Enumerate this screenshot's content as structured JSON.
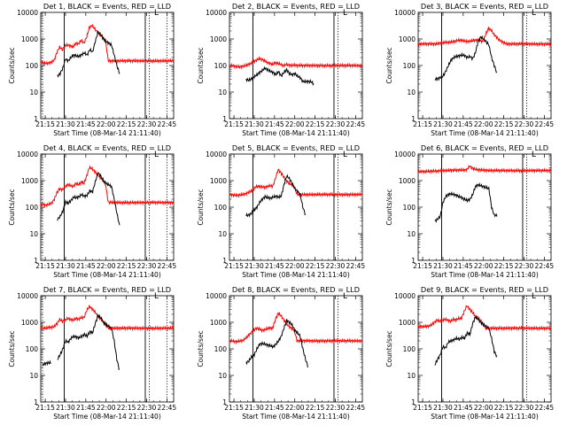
{
  "figure": {
    "x_ticks": [
      "21:15",
      "21:30",
      "21:45",
      "22:00",
      "22:15",
      "22:30",
      "22:45"
    ],
    "y_ticks": [
      "1",
      "10",
      "100",
      "1000",
      "10000"
    ],
    "ylabel": "Counts/sec",
    "xlabel": "Start Time (08-Mar-14 21:11:40)",
    "legend_mark": "L"
  },
  "chart_data": [
    {
      "type": "line",
      "title": "Det 1, BLACK = Events, RED = LLD",
      "xlim": [
        "21:11:40",
        "22:50"
      ],
      "ylim": [
        1,
        10000
      ],
      "yscale": "log",
      "x_start": "21:11:40",
      "sample_minutes": 2,
      "vlines_solid": [
        "21:29",
        "22:29"
      ],
      "vlines_dotted": [
        "21:13",
        "21:29",
        "22:32",
        "22:45"
      ],
      "series": [
        {
          "color": "#ff0000",
          "start": "21:11:40",
          "values": [
            140,
            125,
            120,
            125,
            135,
            160,
            320,
            500,
            400,
            550,
            600,
            550,
            500,
            700,
            650,
            900,
            700,
            1200,
            2800,
            3200,
            2400,
            1800,
            1400,
            1200,
            800,
            150,
            150,
            150,
            150,
            150,
            150,
            150,
            150,
            150,
            150,
            150,
            150,
            150,
            150,
            150,
            150,
            150,
            150,
            150,
            150,
            150,
            150,
            150,
            150,
            150
          ]
        },
        {
          "color": "#000000",
          "start": "21:24",
          "values": [
            40,
            50,
            80,
            180,
            150,
            200,
            250,
            230,
            220,
            260,
            300,
            250,
            400,
            320,
            800,
            1800,
            1500,
            1000,
            800,
            700,
            600,
            250,
            100,
            50
          ]
        }
      ]
    },
    {
      "type": "line",
      "title": "Det 2, BLACK = Events, RED = LLD",
      "xlim": [
        "21:11:40",
        "22:50"
      ],
      "ylim": [
        1,
        10000
      ],
      "yscale": "log",
      "x_start": "21:11:40",
      "sample_minutes": 2,
      "vlines_solid": [
        "21:29",
        "22:29"
      ],
      "vlines_dotted": [
        "21:29",
        "22:32"
      ],
      "series": [
        {
          "color": "#ff0000",
          "start": "21:11:40",
          "values": [
            100,
            100,
            95,
            90,
            90,
            95,
            100,
            110,
            120,
            140,
            160,
            180,
            170,
            150,
            130,
            120,
            110,
            130,
            120,
            110,
            100,
            110,
            105,
            100,
            105,
            100,
            100,
            100,
            100,
            100,
            100,
            100,
            100,
            100,
            100,
            100,
            100,
            100,
            100,
            100,
            100,
            100,
            100,
            100,
            100,
            100,
            100,
            100,
            100,
            100
          ]
        },
        {
          "color": "#000000",
          "start": "21:24",
          "values": [
            30,
            28,
            32,
            38,
            45,
            55,
            65,
            80,
            70,
            60,
            55,
            45,
            60,
            40,
            55,
            70,
            50,
            45,
            50,
            40,
            35,
            25,
            25,
            25,
            25,
            20
          ]
        }
      ]
    },
    {
      "type": "line",
      "title": "Det 3, BLACK = Events, RED = LLD",
      "xlim": [
        "21:11:40",
        "22:50"
      ],
      "ylim": [
        1,
        10000
      ],
      "yscale": "log",
      "x_start": "21:11:40",
      "sample_minutes": 2,
      "vlines_solid": [
        "21:29",
        "22:29"
      ],
      "vlines_dotted": [
        "21:29",
        "22:32"
      ],
      "series": [
        {
          "color": "#ff0000",
          "start": "21:11:40",
          "values": [
            650,
            650,
            650,
            650,
            650,
            650,
            650,
            650,
            700,
            700,
            750,
            750,
            760,
            800,
            850,
            900,
            900,
            850,
            800,
            820,
            850,
            900,
            900,
            850,
            800,
            1500,
            2500,
            2200,
            1500,
            1200,
            900,
            800,
            700,
            650,
            650,
            650,
            650,
            650,
            650,
            650,
            650,
            650,
            650,
            650,
            650,
            650,
            650,
            650,
            650,
            650
          ]
        },
        {
          "color": "#000000",
          "start": "21:24",
          "values": [
            30,
            32,
            35,
            40,
            60,
            100,
            160,
            200,
            220,
            230,
            250,
            240,
            200,
            220,
            180,
            300,
            800,
            1200,
            1000,
            800,
            600,
            200,
            100,
            50
          ]
        }
      ]
    },
    {
      "type": "line",
      "title": "Det 4, BLACK = Events, RED = LLD",
      "xlim": [
        "21:11:40",
        "22:50"
      ],
      "ylim": [
        1,
        10000
      ],
      "yscale": "log",
      "x_start": "21:11:40",
      "sample_minutes": 2,
      "vlines_solid": [
        "21:29",
        "22:29"
      ],
      "vlines_dotted": [
        "21:13",
        "21:29",
        "22:32",
        "22:45"
      ],
      "series": [
        {
          "color": "#ff0000",
          "start": "21:11:40",
          "values": [
            130,
            125,
            120,
            130,
            140,
            200,
            350,
            500,
            450,
            600,
            700,
            650,
            600,
            800,
            700,
            900,
            800,
            1500,
            3200,
            2800,
            2200,
            1700,
            1300,
            1100,
            700,
            150,
            150,
            150,
            150,
            150,
            150,
            150,
            150,
            150,
            150,
            150,
            150,
            150,
            150,
            150,
            150,
            150,
            150,
            150,
            150,
            150,
            150,
            150,
            150,
            150
          ]
        },
        {
          "color": "#000000",
          "start": "21:24",
          "values": [
            35,
            45,
            70,
            160,
            140,
            180,
            240,
            230,
            250,
            300,
            260,
            280,
            420,
            380,
            900,
            2000,
            1500,
            1000,
            800,
            700,
            600,
            200,
            60,
            20
          ]
        }
      ]
    },
    {
      "type": "line",
      "title": "Det 5, BLACK = Events, RED = LLD",
      "xlim": [
        "21:11:40",
        "22:50"
      ],
      "ylim": [
        1,
        10000
      ],
      "yscale": "log",
      "x_start": "21:11:40",
      "sample_minutes": 2,
      "vlines_solid": [
        "21:29",
        "22:29"
      ],
      "vlines_dotted": [
        "21:29",
        "22:32"
      ],
      "series": [
        {
          "color": "#ff0000",
          "start": "21:11:40",
          "values": [
            300,
            290,
            280,
            280,
            290,
            300,
            320,
            360,
            400,
            500,
            600,
            620,
            580,
            560,
            600,
            650,
            600,
            1200,
            2600,
            2000,
            1400,
            1000,
            800,
            700,
            600,
            300,
            300,
            300,
            300,
            300,
            300,
            300,
            300,
            300,
            300,
            300,
            300,
            300,
            300,
            300,
            300,
            300,
            300,
            300,
            300,
            300,
            300,
            300,
            300,
            300
          ]
        },
        {
          "color": "#000000",
          "start": "21:24",
          "values": [
            50,
            50,
            60,
            80,
            100,
            150,
            200,
            250,
            230,
            220,
            240,
            260,
            240,
            260,
            700,
            1500,
            1200,
            800,
            500,
            400,
            300,
            100,
            50
          ]
        }
      ]
    },
    {
      "type": "line",
      "title": "Det 6, BLACK = Events, RED = LLD",
      "xlim": [
        "21:11:40",
        "22:50"
      ],
      "ylim": [
        1,
        10000
      ],
      "yscale": "log",
      "x_start": "21:11:40",
      "sample_minutes": 2,
      "vlines_solid": [
        "21:29",
        "22:29"
      ],
      "vlines_dotted": [
        "21:29",
        "22:32"
      ],
      "series": [
        {
          "color": "#ff0000",
          "start": "21:11:40",
          "values": [
            2200,
            2200,
            2200,
            2250,
            2250,
            2300,
            2300,
            2300,
            2350,
            2400,
            2400,
            2400,
            2450,
            2450,
            2450,
            2500,
            2500,
            2500,
            2600,
            3500,
            3000,
            2700,
            2600,
            2550,
            2500,
            2450,
            2400,
            2400,
            2400,
            2400,
            2400,
            2400,
            2400,
            2400,
            2400,
            2400,
            2400,
            2400,
            2400,
            2400,
            2400,
            2400,
            2400,
            2400,
            2400,
            2400,
            2400,
            2400,
            2400,
            2400
          ]
        },
        {
          "color": "#000000",
          "start": "21:24",
          "values": [
            30,
            35,
            45,
            150,
            250,
            300,
            320,
            300,
            280,
            250,
            230,
            200,
            180,
            200,
            300,
            600,
            700,
            650,
            600,
            550,
            500,
            100,
            50,
            50
          ]
        }
      ]
    },
    {
      "type": "line",
      "title": "Det 7, BLACK = Events, RED = LLD",
      "xlim": [
        "21:11:40",
        "22:50"
      ],
      "ylim": [
        1,
        10000
      ],
      "yscale": "log",
      "x_start": "21:11:40",
      "sample_minutes": 2,
      "vlines_solid": [
        "21:29",
        "22:29"
      ],
      "vlines_dotted": [
        "21:13",
        "21:29",
        "22:32",
        "22:45"
      ],
      "series": [
        {
          "color": "#ff0000",
          "start": "21:11:40",
          "values": [
            600,
            600,
            600,
            650,
            650,
            700,
            900,
            1300,
            1100,
            1200,
            1400,
            1300,
            1200,
            1400,
            1300,
            1500,
            1500,
            2800,
            4000,
            3200,
            2500,
            1800,
            1400,
            1100,
            900,
            600,
            600,
            600,
            600,
            600,
            600,
            600,
            600,
            600,
            600,
            600,
            600,
            600,
            600,
            600,
            600,
            600,
            600,
            600,
            600,
            600,
            600,
            600,
            600,
            600
          ]
        },
        {
          "color": "#000000",
          "start": "21:13",
          "values": [
            25,
            28,
            30,
            30
          ]
        },
        {
          "color": "#000000",
          "start": "21:24",
          "values": [
            40,
            60,
            100,
            200,
            180,
            250,
            300,
            280,
            260,
            300,
            350,
            300,
            450,
            400,
            900,
            1800,
            1500,
            1000,
            800,
            700,
            600,
            200,
            40,
            15
          ]
        }
      ]
    },
    {
      "type": "line",
      "title": "Det 8, BLACK = Events, RED = LLD",
      "xlim": [
        "21:11:40",
        "22:50"
      ],
      "ylim": [
        1,
        10000
      ],
      "yscale": "log",
      "x_start": "21:11:40",
      "sample_minutes": 2,
      "vlines_solid": [
        "21:29",
        "22:29"
      ],
      "vlines_dotted": [
        "21:29",
        "22:32"
      ],
      "series": [
        {
          "color": "#ff0000",
          "start": "21:11:40",
          "values": [
            200,
            200,
            190,
            190,
            200,
            210,
            250,
            320,
            400,
            500,
            600,
            550,
            500,
            520,
            580,
            620,
            600,
            1300,
            2200,
            1800,
            1300,
            900,
            700,
            600,
            500,
            200,
            200,
            200,
            200,
            200,
            200,
            200,
            200,
            200,
            200,
            200,
            200,
            200,
            200,
            200,
            200,
            200,
            200,
            200,
            200,
            200,
            200,
            200,
            200,
            200
          ]
        },
        {
          "color": "#000000",
          "start": "21:24",
          "values": [
            30,
            35,
            50,
            60,
            100,
            150,
            160,
            150,
            140,
            130,
            120,
            150,
            200,
            300,
            600,
            1200,
            1000,
            800,
            500,
            400,
            300,
            100,
            40,
            20
          ]
        }
      ]
    },
    {
      "type": "line",
      "title": "Det 9, BLACK = Events, RED = LLD",
      "xlim": [
        "21:11:40",
        "22:50"
      ],
      "ylim": [
        1,
        10000
      ],
      "yscale": "log",
      "x_start": "21:11:40",
      "sample_minutes": 2,
      "vlines_solid": [
        "21:29",
        "22:29"
      ],
      "vlines_dotted": [
        "21:29",
        "22:32"
      ],
      "series": [
        {
          "color": "#ff0000",
          "start": "21:11:40",
          "values": [
            700,
            700,
            680,
            700,
            720,
            800,
            1000,
            1200,
            1100,
            1200,
            1300,
            1200,
            1100,
            1300,
            1250,
            1400,
            1400,
            2500,
            4200,
            3200,
            2400,
            1800,
            1500,
            1200,
            900,
            600,
            600,
            600,
            600,
            600,
            600,
            600,
            600,
            600,
            600,
            600,
            600,
            600,
            600,
            600,
            600,
            600,
            600,
            600,
            600,
            600,
            600,
            600,
            600,
            600
          ]
        },
        {
          "color": "#000000",
          "start": "21:24",
          "values": [
            25,
            40,
            60,
            120,
            110,
            180,
            200,
            220,
            250,
            230,
            270,
            250,
            400,
            350,
            900,
            1600,
            1300,
            1000,
            800,
            700,
            600,
            250,
            80,
            50
          ]
        }
      ]
    }
  ]
}
